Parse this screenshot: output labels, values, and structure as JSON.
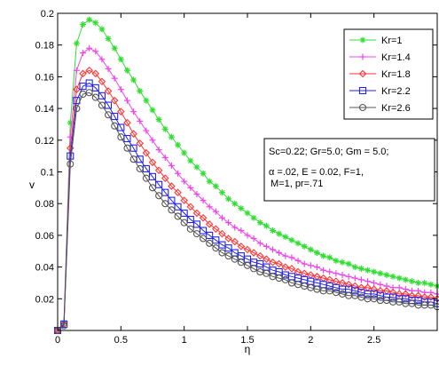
{
  "chart_data": {
    "type": "line",
    "xlabel": "η",
    "ylabel": "v",
    "xlim": [
      0,
      3
    ],
    "ylim": [
      0,
      0.2
    ],
    "xticks": [
      0,
      0.5,
      1,
      1.5,
      2,
      2.5
    ],
    "xtick_labels": [
      "0",
      "0.5",
      "1",
      "1.5",
      "2",
      "2.5"
    ],
    "yticks": [
      0.02,
      0.04,
      0.06,
      0.08,
      0.1,
      0.12,
      0.14,
      0.16,
      0.18,
      0.2
    ],
    "ytick_labels": [
      "0.02",
      "0.04",
      "0.06",
      "0.08",
      "0.1",
      "0.12",
      "0.14",
      "0.16",
      "0.18",
      "0.2"
    ],
    "grid": false,
    "legend_position": "top-right",
    "x": [
      0,
      0.05,
      0.1,
      0.15,
      0.2,
      0.25,
      0.3,
      0.35,
      0.4,
      0.45,
      0.5,
      0.55,
      0.6,
      0.65,
      0.7,
      0.75,
      0.8,
      0.85,
      0.9,
      0.95,
      1,
      1.05,
      1.1,
      1.15,
      1.2,
      1.25,
      1.3,
      1.35,
      1.4,
      1.45,
      1.5,
      1.55,
      1.6,
      1.65,
      1.7,
      1.75,
      1.8,
      1.85,
      1.9,
      1.95,
      2,
      2.05,
      2.1,
      2.15,
      2.2,
      2.25,
      2.3,
      2.35,
      2.4,
      2.45,
      2.5,
      2.55,
      2.6,
      2.65,
      2.7,
      2.75,
      2.8,
      2.85,
      2.9,
      2.95,
      3
    ],
    "series": [
      {
        "name": "Kr=1",
        "color": "#33dd33",
        "marker": "star",
        "values": [
          0,
          0.005,
          0.131,
          0.181,
          0.193,
          0.196,
          0.194,
          0.19,
          0.184,
          0.178,
          0.171,
          0.164,
          0.158,
          0.151,
          0.145,
          0.139,
          0.133,
          0.127,
          0.122,
          0.117,
          0.112,
          0.107,
          0.103,
          0.099,
          0.094,
          0.091,
          0.087,
          0.083,
          0.08,
          0.077,
          0.074,
          0.071,
          0.068,
          0.066,
          0.063,
          0.061,
          0.059,
          0.057,
          0.055,
          0.053,
          0.051,
          0.049,
          0.047,
          0.046,
          0.044,
          0.043,
          0.042,
          0.04,
          0.039,
          0.038,
          0.037,
          0.036,
          0.035,
          0.034,
          0.033,
          0.032,
          0.031,
          0.03,
          0.03,
          0.029,
          0.028
        ]
      },
      {
        "name": "Kr=1.4",
        "color": "#ee44ee",
        "marker": "plus",
        "values": [
          0,
          0.005,
          0.122,
          0.164,
          0.175,
          0.178,
          0.176,
          0.171,
          0.165,
          0.159,
          0.152,
          0.145,
          0.138,
          0.132,
          0.126,
          0.12,
          0.114,
          0.109,
          0.104,
          0.099,
          0.094,
          0.09,
          0.086,
          0.082,
          0.078,
          0.075,
          0.071,
          0.068,
          0.065,
          0.063,
          0.06,
          0.058,
          0.055,
          0.053,
          0.051,
          0.049,
          0.047,
          0.046,
          0.044,
          0.042,
          0.041,
          0.04,
          0.038,
          0.037,
          0.036,
          0.035,
          0.034,
          0.033,
          0.032,
          0.031,
          0.03,
          0.029,
          0.028,
          0.027,
          0.027,
          0.026,
          0.025,
          0.025,
          0.024,
          0.024,
          0.023
        ]
      },
      {
        "name": "Kr=1.8",
        "color": "#ff3333",
        "marker": "diamond",
        "values": [
          0,
          0.004,
          0.115,
          0.152,
          0.162,
          0.164,
          0.162,
          0.157,
          0.151,
          0.145,
          0.138,
          0.131,
          0.124,
          0.118,
          0.112,
          0.106,
          0.101,
          0.096,
          0.091,
          0.087,
          0.082,
          0.078,
          0.074,
          0.071,
          0.067,
          0.064,
          0.061,
          0.058,
          0.056,
          0.053,
          0.051,
          0.049,
          0.047,
          0.045,
          0.043,
          0.042,
          0.04,
          0.039,
          0.037,
          0.036,
          0.035,
          0.034,
          0.033,
          0.032,
          0.031,
          0.03,
          0.029,
          0.028,
          0.027,
          0.027,
          0.026,
          0.025,
          0.025,
          0.024,
          0.023,
          0.023,
          0.022,
          0.022,
          0.021,
          0.021,
          0.02
        ]
      },
      {
        "name": "Kr=2.2",
        "color": "#2222ee",
        "marker": "square",
        "values": [
          0,
          0.004,
          0.11,
          0.145,
          0.154,
          0.156,
          0.153,
          0.148,
          0.142,
          0.135,
          0.128,
          0.121,
          0.115,
          0.108,
          0.102,
          0.097,
          0.092,
          0.087,
          0.082,
          0.078,
          0.074,
          0.07,
          0.067,
          0.063,
          0.06,
          0.057,
          0.054,
          0.052,
          0.049,
          0.047,
          0.045,
          0.043,
          0.042,
          0.04,
          0.038,
          0.037,
          0.035,
          0.034,
          0.033,
          0.032,
          0.031,
          0.03,
          0.029,
          0.028,
          0.027,
          0.026,
          0.026,
          0.025,
          0.024,
          0.023,
          0.023,
          0.022,
          0.021,
          0.021,
          0.02,
          0.02,
          0.019,
          0.019,
          0.018,
          0.018,
          0.017
        ]
      },
      {
        "name": "Kr=2.6",
        "color": "#555555",
        "marker": "circle",
        "values": [
          0,
          0.003,
          0.105,
          0.14,
          0.149,
          0.15,
          0.147,
          0.142,
          0.136,
          0.129,
          0.122,
          0.115,
          0.108,
          0.102,
          0.096,
          0.09,
          0.085,
          0.08,
          0.076,
          0.072,
          0.068,
          0.064,
          0.061,
          0.058,
          0.055,
          0.052,
          0.049,
          0.047,
          0.045,
          0.043,
          0.041,
          0.039,
          0.037,
          0.036,
          0.034,
          0.033,
          0.032,
          0.03,
          0.029,
          0.028,
          0.027,
          0.026,
          0.025,
          0.025,
          0.024,
          0.023,
          0.022,
          0.022,
          0.021,
          0.02,
          0.02,
          0.019,
          0.019,
          0.018,
          0.018,
          0.017,
          0.017,
          0.016,
          0.016,
          0.016,
          0.015
        ]
      }
    ],
    "annotation": [
      "Sc=0.22; Gr=5.0; Gm = 5.0;",
      "α =.02, E = 0.02, F=1,",
      "M=1, pr=.71"
    ]
  }
}
